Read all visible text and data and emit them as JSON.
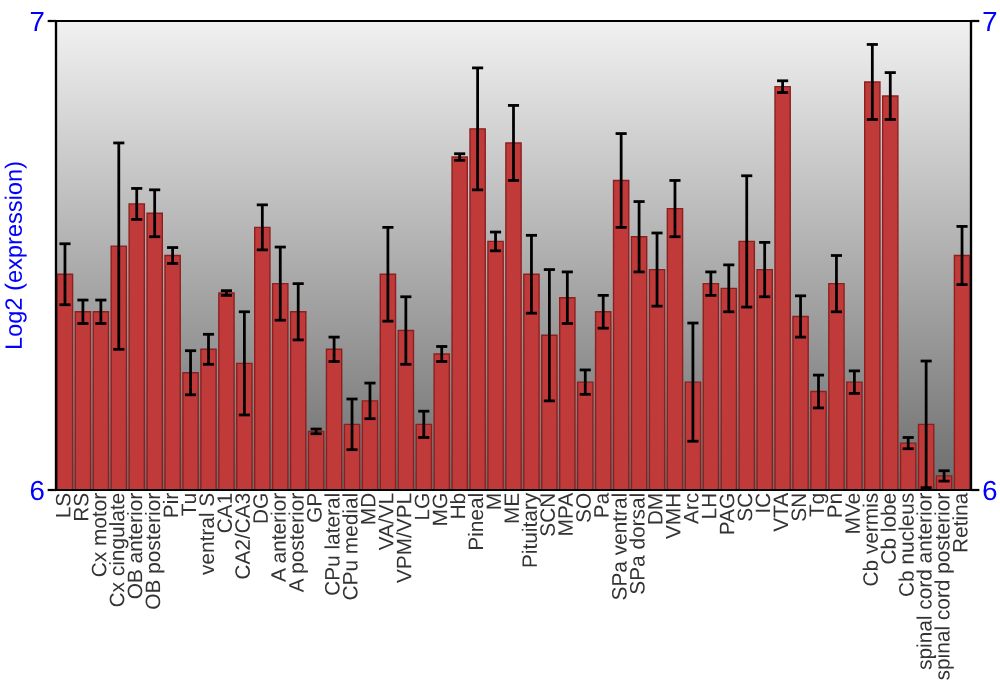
{
  "chart_data": {
    "type": "bar",
    "ylabel": "Log2 (expression)",
    "categories": [
      "LS",
      "RS",
      "Cx motor",
      "Cx cingulate",
      "OB anterior",
      "OB posterior",
      "Pir",
      "Tu",
      "ventral S",
      "CA1",
      "CA2/CA3",
      "DG",
      "A anterior",
      "A posterior",
      "GP",
      "CPu lateral",
      "CPu medial",
      "MD",
      "VA/VL",
      "VPM/VPL",
      "LG",
      "MG",
      "Hb",
      "Pineal",
      "M",
      "ME",
      "Pituitary",
      "SCN",
      "MPA",
      "SO",
      "Pa",
      "SPa ventral",
      "SPa dorsal",
      "DM",
      "VMH",
      "Arc",
      "LH",
      "PAG",
      "SC",
      "IC",
      "VTA",
      "SN",
      "Tg",
      "Pn",
      "MVe",
      "Cb vermis",
      "Cb lobe",
      "Cb nucleus",
      "spinal cord anterior",
      "spinal cord posterior",
      "Retina"
    ],
    "values": [
      6.46,
      6.38,
      6.38,
      6.52,
      6.61,
      6.59,
      6.5,
      6.25,
      6.3,
      6.42,
      6.27,
      6.56,
      6.44,
      6.38,
      6.125,
      6.3,
      6.14,
      6.19,
      6.46,
      6.34,
      6.14,
      6.29,
      6.71,
      6.77,
      6.53,
      6.74,
      6.46,
      6.33,
      6.41,
      6.23,
      6.38,
      6.66,
      6.54,
      6.47,
      6.6,
      6.23,
      6.44,
      6.43,
      6.53,
      6.47,
      6.86,
      6.37,
      6.21,
      6.44,
      6.23,
      6.87,
      6.84,
      6.1,
      6.14,
      6.03,
      6.5
    ],
    "errors": [
      0.065,
      0.025,
      0.025,
      0.22,
      0.033,
      0.05,
      0.017,
      0.047,
      0.032,
      0.005,
      0.11,
      0.048,
      0.078,
      0.06,
      0.005,
      0.026,
      0.054,
      0.038,
      0.1,
      0.072,
      0.028,
      0.016,
      0.007,
      0.13,
      0.02,
      0.08,
      0.083,
      0.14,
      0.055,
      0.026,
      0.035,
      0.1,
      0.075,
      0.078,
      0.06,
      0.126,
      0.025,
      0.05,
      0.14,
      0.058,
      0.0125,
      0.044,
      0.035,
      0.06,
      0.024,
      0.08,
      0.05,
      0.012,
      0.135,
      0.011,
      0.062
    ],
    "color": "#c03a3a",
    "ylim": [
      6,
      7
    ],
    "yticks": [
      6,
      7
    ],
    "y2lim": [
      6,
      7
    ],
    "y2ticks": [
      6,
      7
    ],
    "grid": false,
    "legend": false
  }
}
